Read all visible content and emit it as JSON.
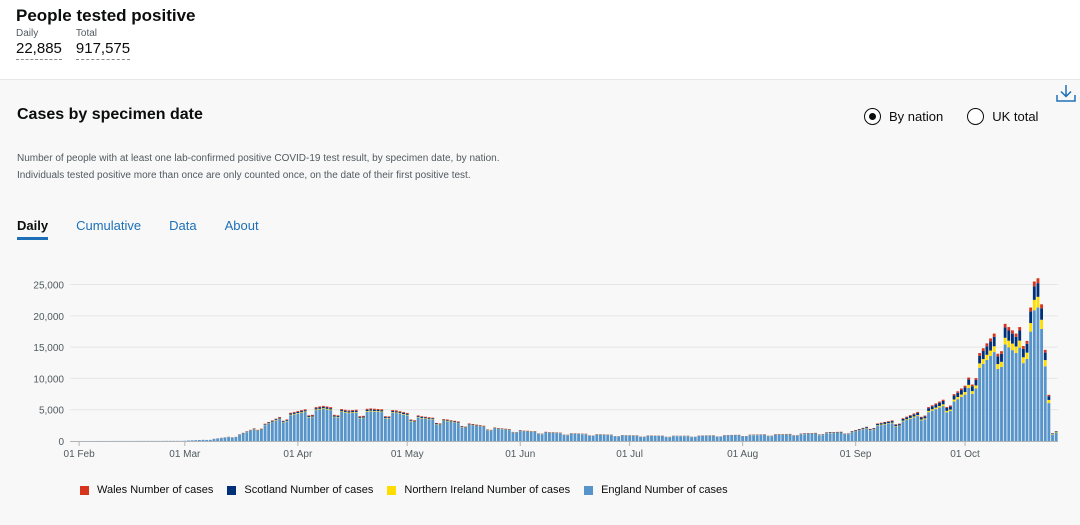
{
  "header": {
    "title": "People tested positive",
    "daily_label": "Daily",
    "daily_value": "22,885",
    "total_label": "Total",
    "total_value": "917,575"
  },
  "card": {
    "title": "Cases by specimen date",
    "description": "Number of people with at least one lab-confirmed positive COVID-19 test result, by specimen date, by nation. Individuals tested positive more than once are only counted once, on the date of their first positive test.",
    "radio_options": [
      {
        "label": "By nation",
        "selected": true
      },
      {
        "label": "UK total",
        "selected": false
      }
    ],
    "tabs": [
      {
        "label": "Daily",
        "active": true
      },
      {
        "label": "Cumulative",
        "active": false
      },
      {
        "label": "Data",
        "active": false
      },
      {
        "label": "About",
        "active": false
      }
    ],
    "download_icon": "download-icon"
  },
  "chart_data": {
    "type": "bar",
    "stacked": true,
    "x_ticks": [
      "01 Feb",
      "01 Mar",
      "01 Apr",
      "01 May",
      "01 Jun",
      "01 Jul",
      "01 Aug",
      "01 Sep",
      "01 Oct"
    ],
    "y_ticks": [
      "0",
      "5,000",
      "10,000",
      "15,000",
      "20,000",
      "25,000"
    ],
    "ylim": [
      0,
      27000
    ],
    "x_range": [
      "2020-01-30",
      "2020-10-26"
    ],
    "grid": true,
    "legend_placement": "bottom",
    "series": [
      {
        "name": "England Number of cases",
        "color": "#5694ca"
      },
      {
        "name": "Northern Ireland Number of cases",
        "color": "#ffdd00"
      },
      {
        "name": "Scotland Number of cases",
        "color": "#003078"
      },
      {
        "name": "Wales Number of cases",
        "color": "#d4351c"
      }
    ],
    "legend_order": [
      3,
      2,
      1,
      0
    ],
    "anchors_total": [
      [
        "2020-01-30",
        0
      ],
      [
        "2020-02-29",
        30
      ],
      [
        "2020-03-08",
        250
      ],
      [
        "2020-03-15",
        800
      ],
      [
        "2020-03-22",
        2400
      ],
      [
        "2020-03-29",
        4200
      ],
      [
        "2020-04-04",
        5000
      ],
      [
        "2020-04-08",
        5400
      ],
      [
        "2020-04-15",
        4700
      ],
      [
        "2020-04-21",
        5000
      ],
      [
        "2020-04-28",
        4700
      ],
      [
        "2020-05-05",
        3800
      ],
      [
        "2020-05-12",
        3300
      ],
      [
        "2020-05-19",
        2600
      ],
      [
        "2020-05-26",
        2000
      ],
      [
        "2020-06-02",
        1600
      ],
      [
        "2020-06-15",
        1200
      ],
      [
        "2020-06-30",
        900
      ],
      [
        "2020-07-15",
        800
      ],
      [
        "2020-07-31",
        950
      ],
      [
        "2020-08-15",
        1100
      ],
      [
        "2020-08-31",
        1500
      ],
      [
        "2020-09-07",
        2700
      ],
      [
        "2020-09-14",
        3500
      ],
      [
        "2020-09-21",
        5200
      ],
      [
        "2020-09-28",
        7200
      ],
      [
        "2020-10-01",
        8500
      ],
      [
        "2020-10-05",
        13500
      ],
      [
        "2020-10-09",
        16500
      ],
      [
        "2020-10-12",
        18000
      ],
      [
        "2020-10-15",
        16500
      ],
      [
        "2020-10-19",
        20500
      ],
      [
        "2020-10-20",
        24500
      ],
      [
        "2020-10-21",
        25000
      ],
      [
        "2020-10-22",
        21000
      ],
      [
        "2020-10-23",
        14000
      ],
      [
        "2020-10-24",
        9000
      ],
      [
        "2020-10-25",
        1500
      ]
    ],
    "anchors_share": [
      [
        "2020-01-30",
        0.93,
        0.02,
        0.03
      ],
      [
        "2020-04-15",
        0.91,
        0.02,
        0.04
      ],
      [
        "2020-07-15",
        0.93,
        0.02,
        0.025
      ],
      [
        "2020-09-15",
        0.86,
        0.03,
        0.08
      ],
      [
        "2020-10-15",
        0.82,
        0.06,
        0.09
      ],
      [
        "2020-10-25",
        0.82,
        0.07,
        0.08
      ]
    ]
  }
}
